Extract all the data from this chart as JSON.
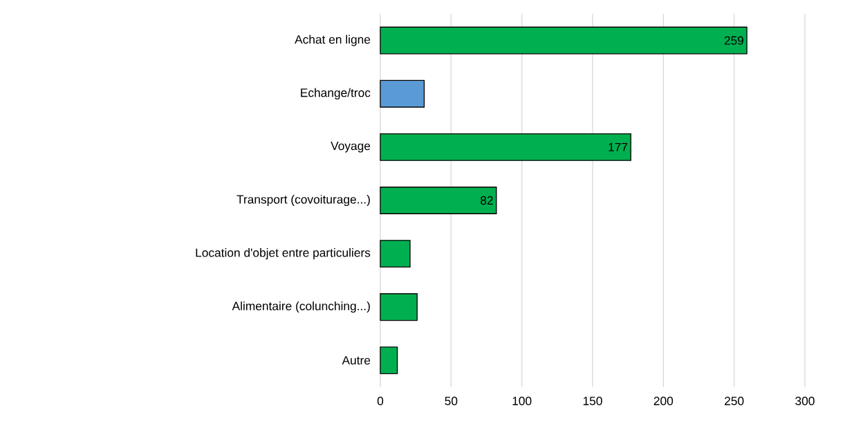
{
  "chart_data": {
    "type": "bar",
    "orientation": "horizontal",
    "categories": [
      "Achat en ligne",
      "Echange/troc",
      "Voyage",
      "Transport (covoiturage...)",
      "Location d'objet entre particuliers",
      "Alimentaire (colunching...)",
      "Autre"
    ],
    "values": [
      259,
      31,
      177,
      82,
      21,
      26,
      12
    ],
    "value_labels": [
      "259",
      null,
      "177",
      "82",
      null,
      null,
      null
    ],
    "colors": [
      "#00b050",
      "#5b9bd5",
      "#00b050",
      "#00b050",
      "#00b050",
      "#00b050",
      "#00b050"
    ],
    "xlim": [
      0,
      300
    ],
    "xticks": [
      0,
      50,
      100,
      150,
      200,
      250,
      300
    ],
    "grid": "x"
  }
}
